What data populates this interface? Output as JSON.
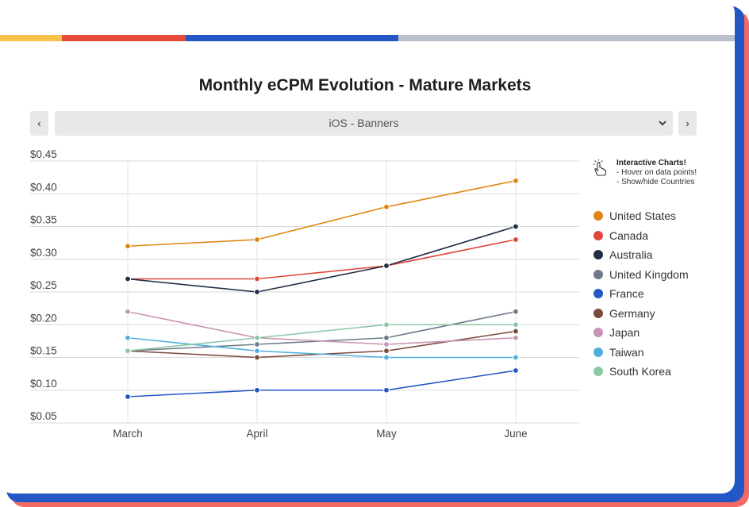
{
  "colors": {
    "strip": [
      "#f9c04a",
      "#e64a3b",
      "#2357c6",
      "#b9c0cb"
    ],
    "card_shadow_1": "#2357c6",
    "card_shadow_2": "#f26a63"
  },
  "selector": {
    "prev_label": "‹",
    "next_label": "›",
    "selected": "iOS - Banners",
    "caret_icon": "chevron-down-icon"
  },
  "hint": {
    "icon": "pointer-hand-icon",
    "title": "Interactive Charts!",
    "lines": [
      "- Hover on data points!",
      "- Show/hide Countries"
    ]
  },
  "chart_data": {
    "type": "line",
    "title": "Monthly eCPM Evolution - Mature Markets",
    "categories": [
      "March",
      "April",
      "May",
      "June"
    ],
    "ylim": [
      0.05,
      0.45
    ],
    "yticks": [
      0.05,
      0.1,
      0.15,
      0.2,
      0.25,
      0.3,
      0.35,
      0.4,
      0.45
    ],
    "ytick_labels": [
      "$0.05",
      "$0.10",
      "$0.15",
      "$0.20",
      "$0.25",
      "$0.30",
      "$0.35",
      "$0.40",
      "$0.45"
    ],
    "grid": true,
    "legend_position": "right",
    "series": [
      {
        "name": "United States",
        "color": "#e0850f",
        "values": [
          0.32,
          0.33,
          0.38,
          0.42
        ]
      },
      {
        "name": "Canada",
        "color": "#e2453b",
        "values": [
          0.27,
          0.27,
          0.29,
          0.33
        ]
      },
      {
        "name": "Australia",
        "color": "#1f2d45",
        "values": [
          0.27,
          0.25,
          0.29,
          0.35
        ]
      },
      {
        "name": "United Kingdom",
        "color": "#6e7a8a",
        "values": [
          0.16,
          0.17,
          0.18,
          0.22
        ]
      },
      {
        "name": "France",
        "color": "#2357c6",
        "values": [
          0.09,
          0.1,
          0.1,
          0.13
        ]
      },
      {
        "name": "Germany",
        "color": "#7a4a3a",
        "values": [
          0.16,
          0.15,
          0.16,
          0.19
        ]
      },
      {
        "name": "Japan",
        "color": "#c893b4",
        "values": [
          0.22,
          0.18,
          0.17,
          0.18
        ]
      },
      {
        "name": "Taiwan",
        "color": "#4fb0de",
        "values": [
          0.18,
          0.16,
          0.15,
          0.15
        ]
      },
      {
        "name": "South Korea",
        "color": "#8cc7a5",
        "values": [
          0.16,
          0.18,
          0.2,
          0.2
        ]
      }
    ]
  }
}
